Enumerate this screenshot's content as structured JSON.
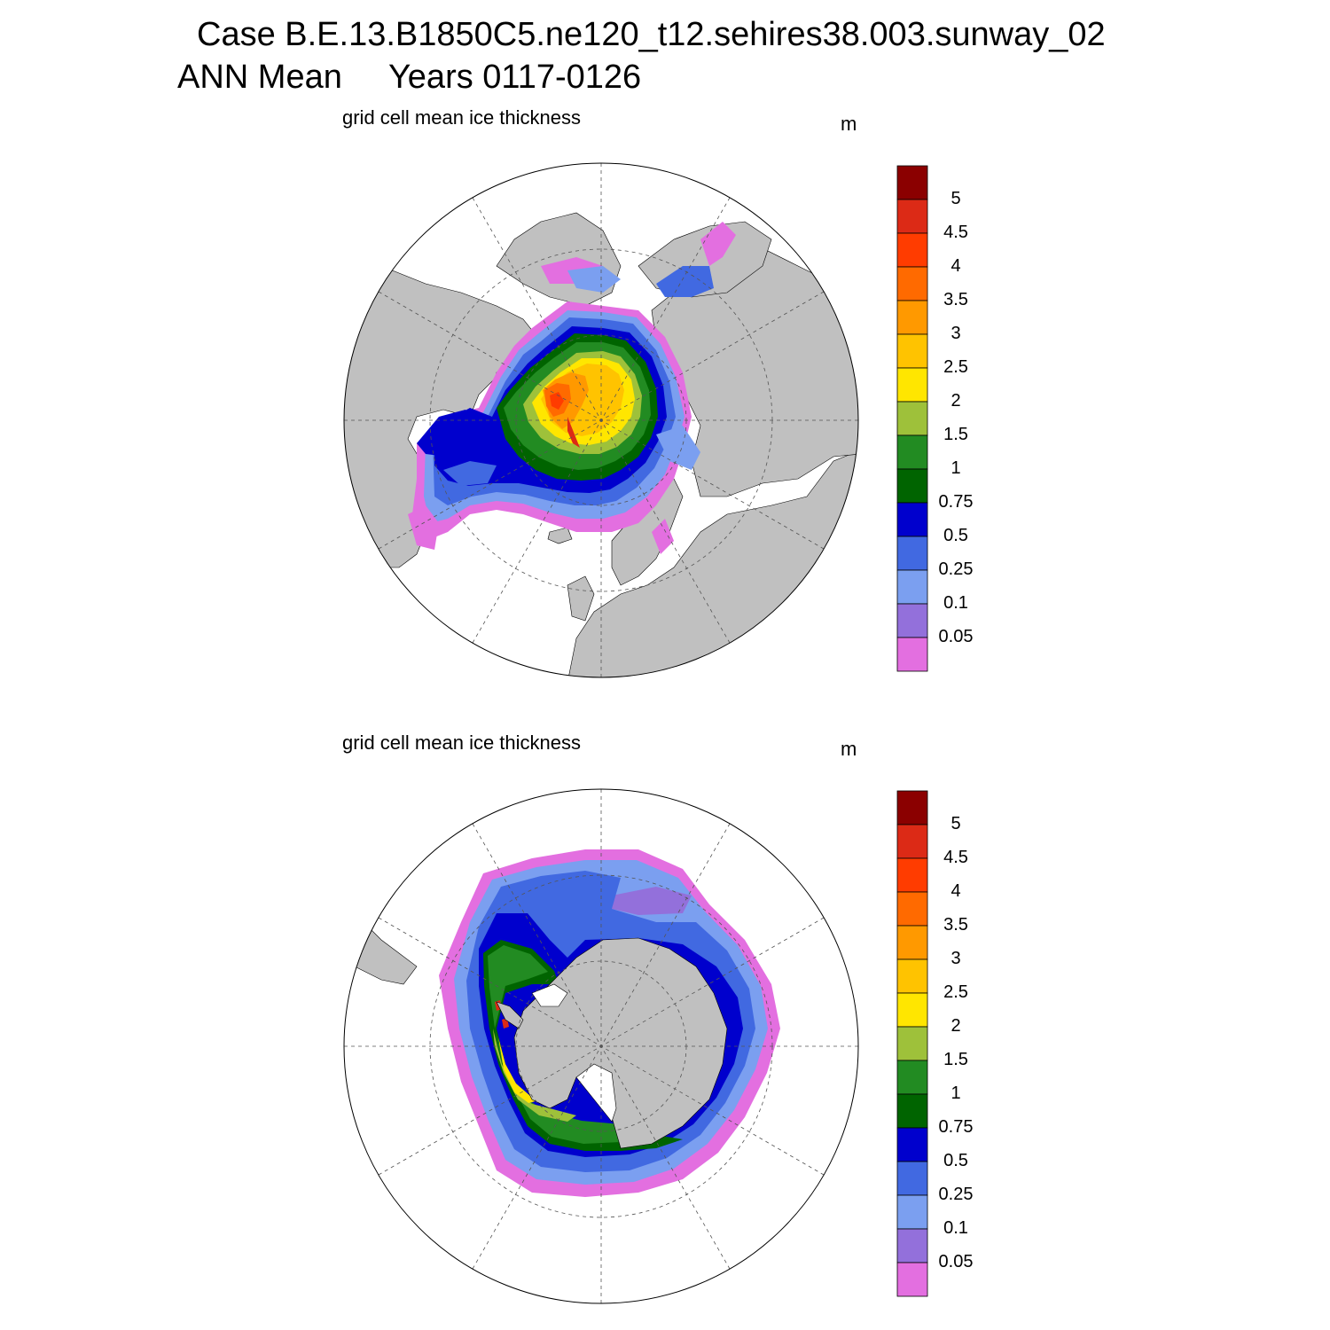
{
  "header": {
    "case_line": "Case B.E.13.B1850C5.ne120_t12.sehires38.003.sunway_02",
    "period_line": "ANN Mean     Years 0117-0126"
  },
  "panels": [
    {
      "id": "north",
      "title": "grid cell mean ice thickness",
      "units": "m"
    },
    {
      "id": "south",
      "title": "grid cell mean ice thickness",
      "units": "m"
    }
  ],
  "colorbar": {
    "labels": [
      "5",
      "4.5",
      "4",
      "3.5",
      "3",
      "2.5",
      "2",
      "1.5",
      "1",
      "0.75",
      "0.5",
      "0.25",
      "0.1",
      "0.05"
    ],
    "colors": [
      "#8b0000",
      "#dc2a16",
      "#ff3c00",
      "#ff6a00",
      "#ff9900",
      "#ffc300",
      "#ffe600",
      "#9ec13a",
      "#228b22",
      "#006400",
      "#0000cd",
      "#4169e1",
      "#7b9ff0",
      "#9370db",
      "#e36fe0"
    ]
  },
  "palette": {
    "land": "#c0c0c0",
    "ocean": "#ffffff",
    "grid": "#555555"
  }
}
